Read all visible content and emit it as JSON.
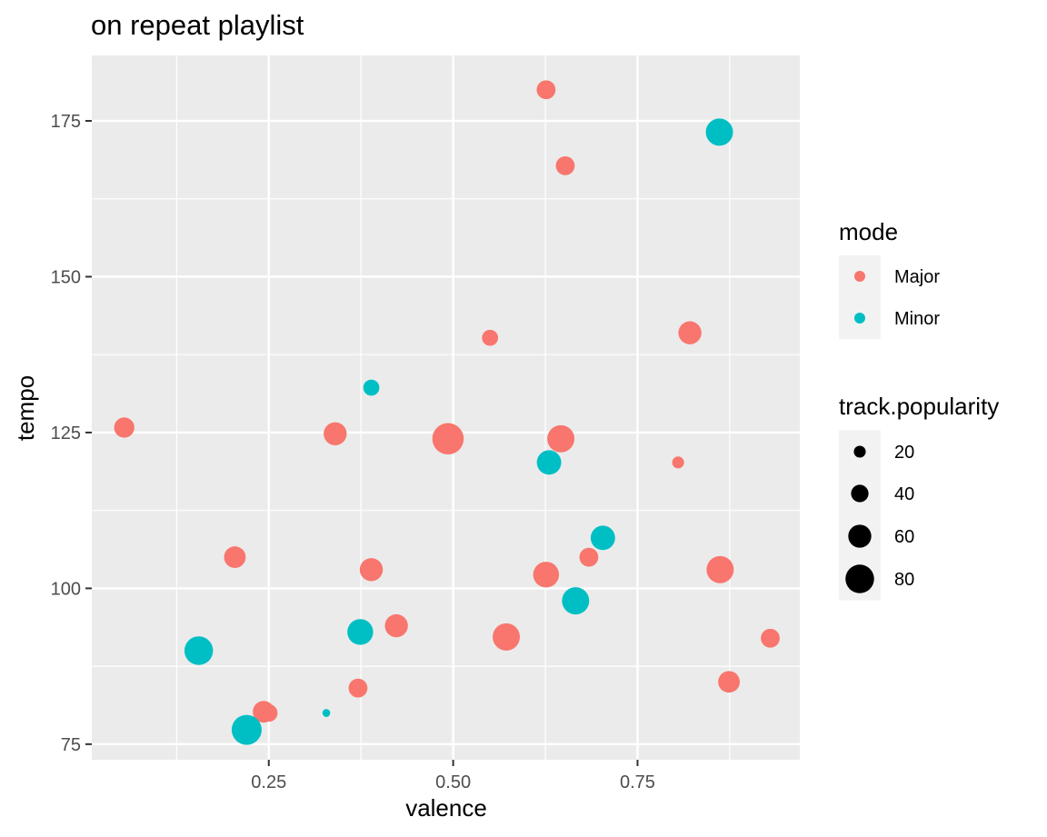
{
  "chart_data": {
    "type": "scatter",
    "title": "on repeat playlist",
    "xlabel": "valence",
    "ylabel": "tempo",
    "xlim": [
      0.01,
      0.97
    ],
    "ylim": [
      72.5,
      185.5
    ],
    "x_ticks": [
      0.25,
      0.5,
      0.75
    ],
    "x_tick_labels": [
      "0.25",
      "0.50",
      "0.75"
    ],
    "y_ticks": [
      75,
      100,
      125,
      150,
      175
    ],
    "y_tick_labels": [
      "75",
      "100",
      "125",
      "150",
      "175"
    ],
    "grid": true,
    "legend_position": "right",
    "colors": {
      "Major": "#F8766D",
      "Minor": "#00BFC4",
      "panel": "#EBEBEB",
      "grid": "#FFFFFF"
    },
    "color_legend": {
      "title": "mode",
      "entries": [
        {
          "label": "Major",
          "color": "#F8766D"
        },
        {
          "label": "Minor",
          "color": "#00BFC4"
        }
      ]
    },
    "size_legend": {
      "title": "track.popularity",
      "entries": [
        {
          "label": "20",
          "value": 20
        },
        {
          "label": "40",
          "value": 40
        },
        {
          "label": "60",
          "value": 60
        },
        {
          "label": "80",
          "value": 80
        }
      ]
    },
    "points": [
      {
        "x": 0.626,
        "y": 180.0,
        "mode": "Major",
        "popularity": 45
      },
      {
        "x": 0.652,
        "y": 167.8,
        "mode": "Major",
        "popularity": 45
      },
      {
        "x": 0.861,
        "y": 173.2,
        "mode": "Minor",
        "popularity": 75
      },
      {
        "x": 0.55,
        "y": 140.2,
        "mode": "Major",
        "popularity": 35
      },
      {
        "x": 0.821,
        "y": 141.0,
        "mode": "Major",
        "popularity": 60
      },
      {
        "x": 0.389,
        "y": 132.2,
        "mode": "Minor",
        "popularity": 35
      },
      {
        "x": 0.054,
        "y": 125.8,
        "mode": "Major",
        "popularity": 50
      },
      {
        "x": 0.34,
        "y": 124.8,
        "mode": "Major",
        "popularity": 60
      },
      {
        "x": 0.493,
        "y": 124.0,
        "mode": "Major",
        "popularity": 90
      },
      {
        "x": 0.646,
        "y": 124.0,
        "mode": "Major",
        "popularity": 75
      },
      {
        "x": 0.63,
        "y": 120.2,
        "mode": "Minor",
        "popularity": 65
      },
      {
        "x": 0.805,
        "y": 120.2,
        "mode": "Major",
        "popularity": 20
      },
      {
        "x": 0.703,
        "y": 108.1,
        "mode": "Minor",
        "popularity": 65
      },
      {
        "x": 0.204,
        "y": 105.0,
        "mode": "Major",
        "popularity": 55
      },
      {
        "x": 0.684,
        "y": 105.0,
        "mode": "Major",
        "popularity": 45
      },
      {
        "x": 0.389,
        "y": 103.0,
        "mode": "Major",
        "popularity": 60
      },
      {
        "x": 0.626,
        "y": 102.2,
        "mode": "Major",
        "popularity": 70
      },
      {
        "x": 0.862,
        "y": 103.0,
        "mode": "Major",
        "popularity": 75
      },
      {
        "x": 0.666,
        "y": 98.0,
        "mode": "Minor",
        "popularity": 75
      },
      {
        "x": 0.423,
        "y": 94.0,
        "mode": "Major",
        "popularity": 60
      },
      {
        "x": 0.374,
        "y": 93.0,
        "mode": "Minor",
        "popularity": 70
      },
      {
        "x": 0.572,
        "y": 92.2,
        "mode": "Major",
        "popularity": 75
      },
      {
        "x": 0.93,
        "y": 92.0,
        "mode": "Major",
        "popularity": 45
      },
      {
        "x": 0.155,
        "y": 90.0,
        "mode": "Minor",
        "popularity": 80
      },
      {
        "x": 0.874,
        "y": 85.0,
        "mode": "Major",
        "popularity": 55
      },
      {
        "x": 0.371,
        "y": 84.0,
        "mode": "Major",
        "popularity": 45
      },
      {
        "x": 0.328,
        "y": 80.0,
        "mode": "Minor",
        "popularity": 5
      },
      {
        "x": 0.25,
        "y": 80.0,
        "mode": "Major",
        "popularity": 40
      },
      {
        "x": 0.243,
        "y": 80.2,
        "mode": "Major",
        "popularity": 55
      },
      {
        "x": 0.22,
        "y": 77.3,
        "mode": "Minor",
        "popularity": 85
      }
    ]
  }
}
